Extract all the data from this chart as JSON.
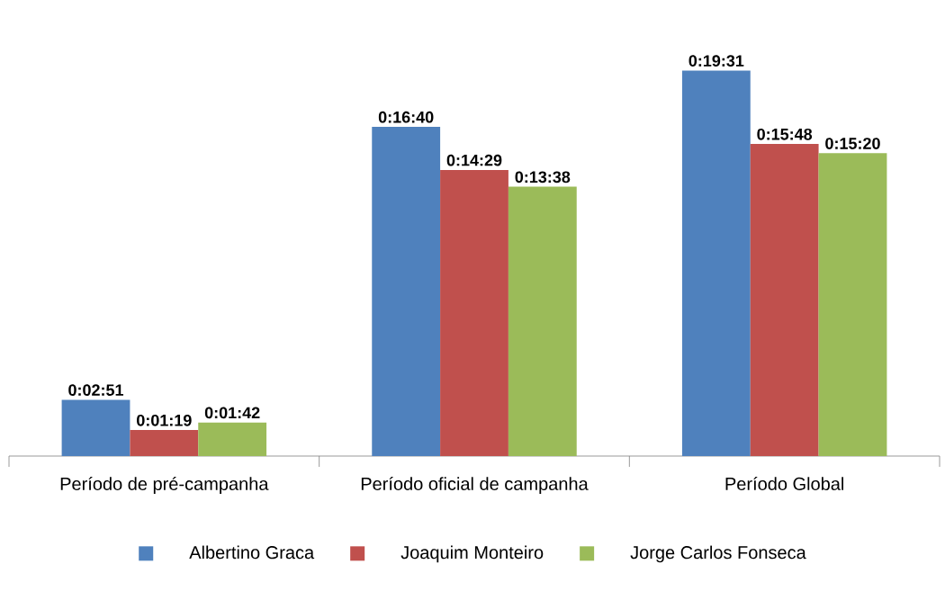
{
  "chart_data": {
    "type": "bar",
    "categories": [
      "Período de pré-campanha",
      "Período oficial de campanha",
      "Período Global"
    ],
    "series": [
      {
        "name": "Albertino Graca",
        "color": "#4f81bd",
        "values": [
          171,
          1000,
          1171
        ],
        "value_labels": [
          "0:02:51",
          "0:16:40",
          "0:19:31"
        ]
      },
      {
        "name": "Joaquim Monteiro",
        "color": "#c0504d",
        "values": [
          79,
          869,
          948
        ],
        "value_labels": [
          "0:01:19",
          "0:14:29",
          "0:15:48"
        ]
      },
      {
        "name": "Jorge Carlos Fonseca",
        "color": "#9bbb59",
        "values": [
          102,
          818,
          920
        ],
        "value_labels": [
          "0:01:42",
          "0:13:38",
          "0:15:20"
        ]
      }
    ],
    "legend": "bottom"
  }
}
